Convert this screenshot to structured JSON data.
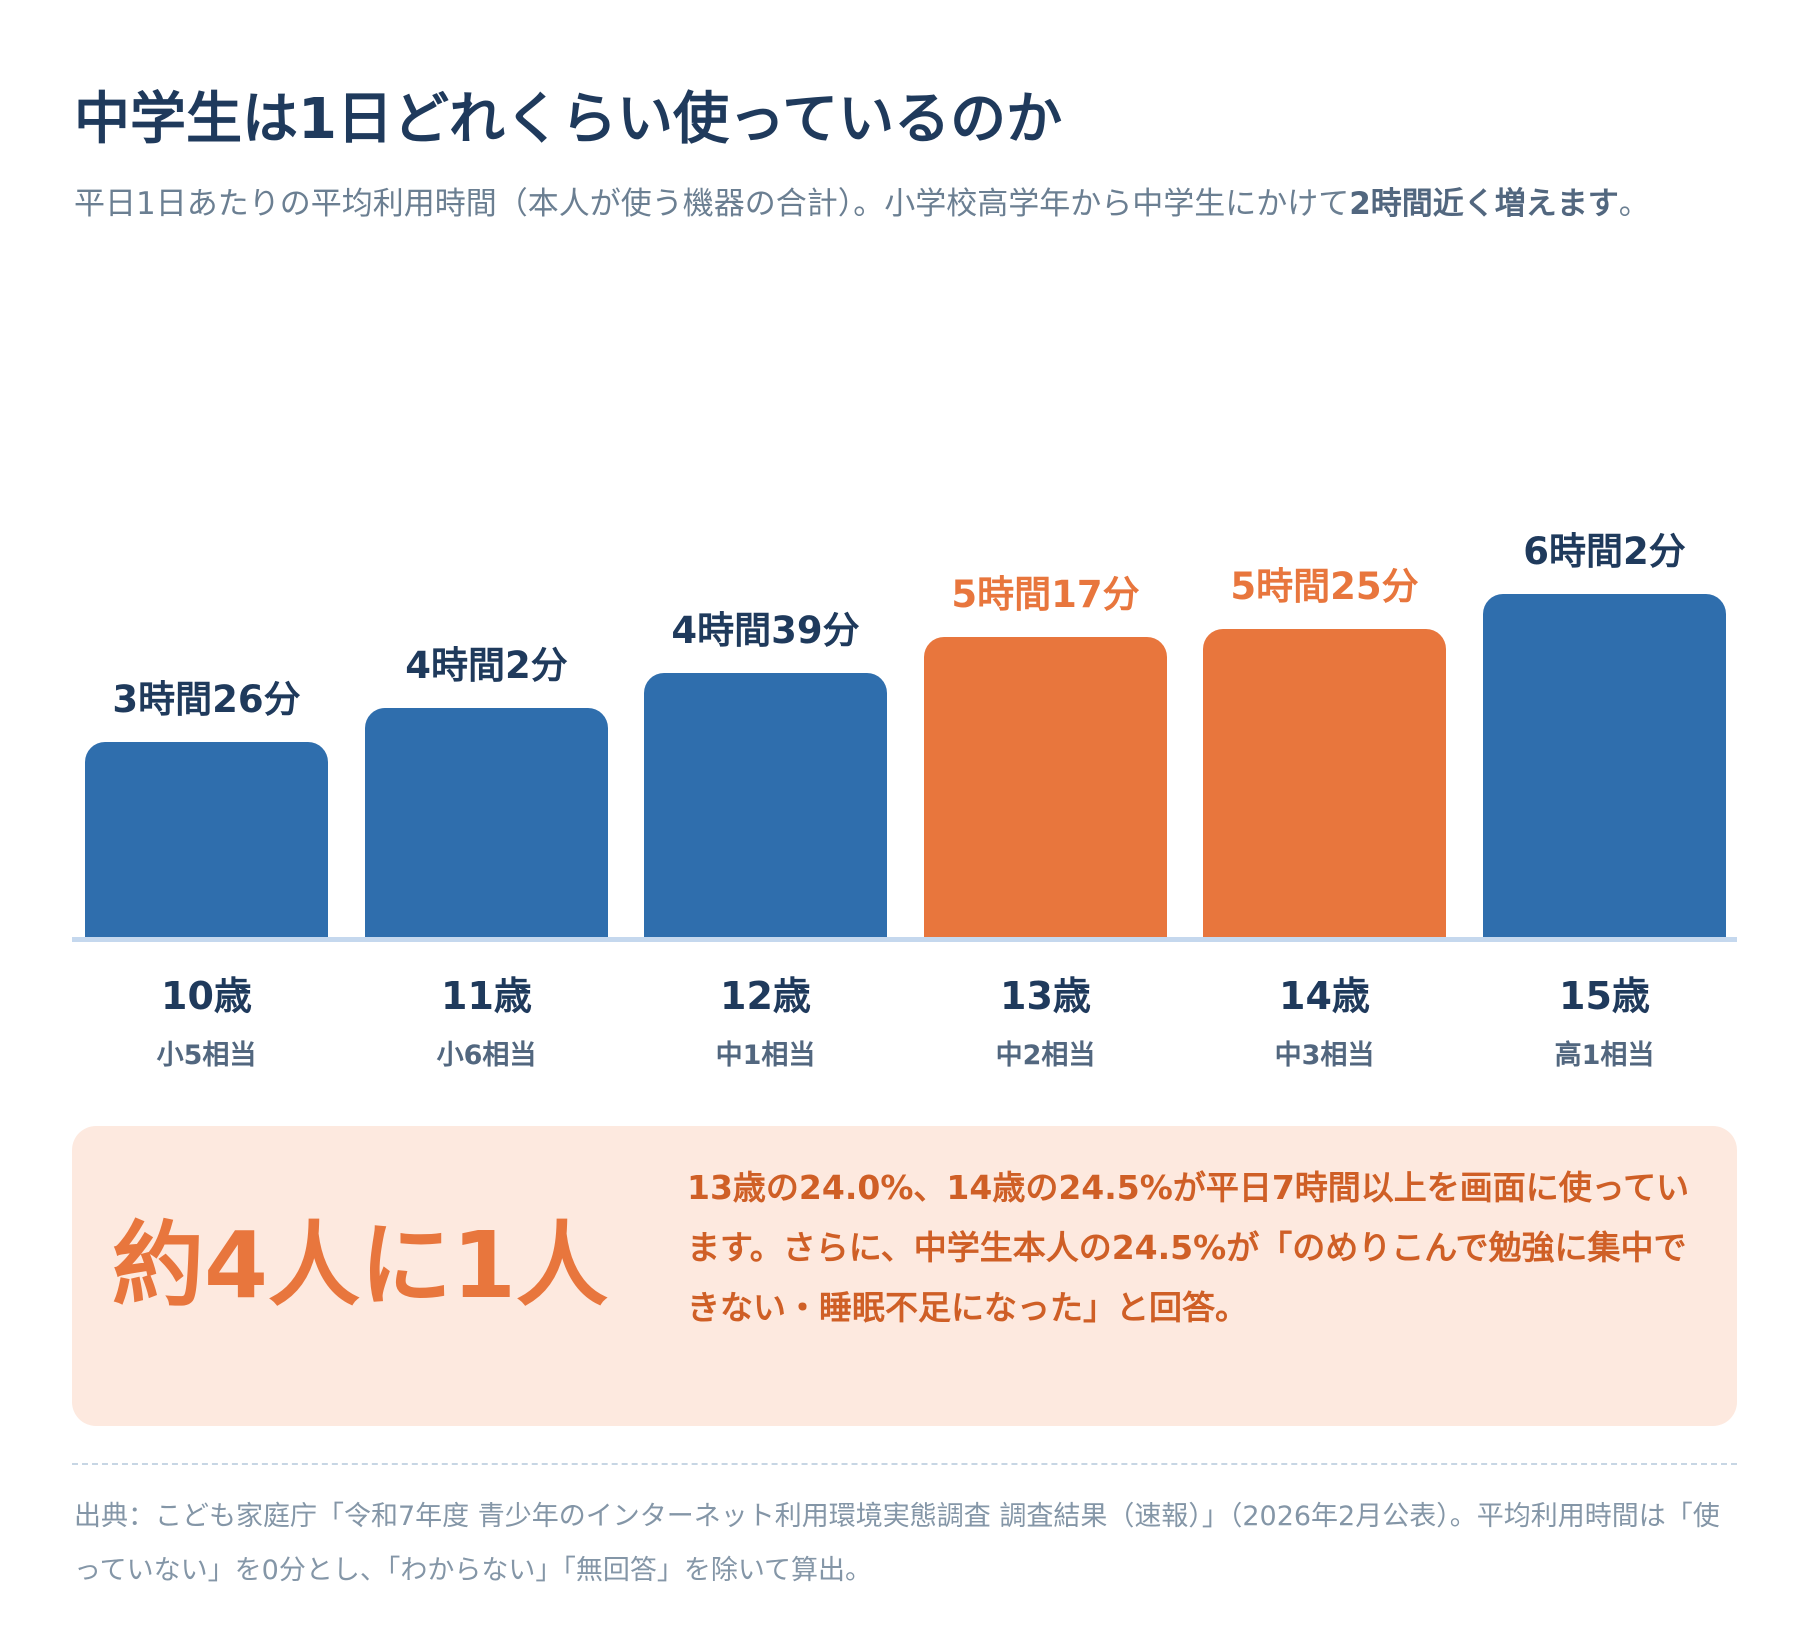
{
  "header": {
    "title": "中学生は1日どれくらい使っているのか",
    "subtitle_prefix": "平日1日あたりの平均利用時間（本人が使う機器の合計）。小学校高学年から中学生にかけて",
    "subtitle_emphasis": "2時間近く増えます",
    "subtitle_suffix": "。"
  },
  "colors": {
    "blue": "#2f6ead",
    "orange": "#e8763d",
    "navy": "#1f3a5c"
  },
  "chart_data": {
    "type": "bar",
    "categories": [
      "10歳",
      "11歳",
      "12歳",
      "13歳",
      "14歳",
      "15歳"
    ],
    "sub_labels": [
      "小5相当",
      "小6相当",
      "中1相当",
      "中2相当",
      "中3相当",
      "高1相当"
    ],
    "values": [
      206,
      242,
      279,
      317,
      325,
      362
    ],
    "value_labels": [
      "3時間26分",
      "4時間2分",
      "4時間39分",
      "5時間17分",
      "5時間25分",
      "6時間2分"
    ],
    "highlight": [
      false,
      false,
      false,
      true,
      true,
      false
    ],
    "title": "",
    "xlabel": "",
    "ylabel": "",
    "ylim": [
      0,
      362
    ]
  },
  "callout": {
    "big": "約4人に1人",
    "text": "13歳の24.0%、14歳の24.5%が平日7時間以上を画面に使っています。さらに、中学生本人の24.5%が「のめりこんで勉強に集中できない・睡眠不足になった」と回答。"
  },
  "source": "出典：こども家庭庁「令和7年度 青少年のインターネット利用環境実態調査 調査結果（速報）」（2026年2月公表）。平均利用時間は「使っていない」を0分とし、「わからない」「無回答」を除いて算出。"
}
